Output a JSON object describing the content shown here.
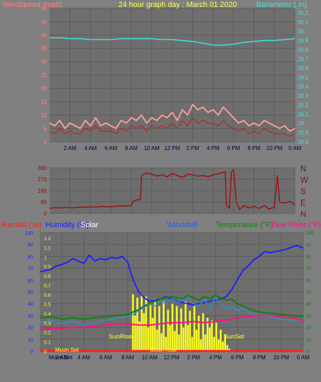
{
  "colors": {
    "background": "#808080",
    "plot_bg": "#6e6e6e",
    "grid": "#5c5c5c",
    "wind_label": "#ff8080",
    "title": "#ffff40",
    "baro": "#40e0e0",
    "dir": "#a01010",
    "dir_label": "#801010",
    "rain": "#ff2020",
    "humidity": "#2020ff",
    "solar": "#ffff20",
    "windchill": "#2060e0",
    "temperature": "#108010",
    "dewpoint": "#ff1080",
    "moon_label": "#ffff40"
  },
  "chart_data": [
    {
      "type": "line",
      "panel": "wind",
      "title": "24 hour graph day : March 01 2020",
      "ylabel_left": "Windspeed (mph)",
      "ylabel_right": "Barometer (.in)",
      "x_ticks": [
        "2 AM",
        "4 AM",
        "6 AM",
        "8 AM",
        "10 AM",
        "12 PM",
        "2 PM",
        "4 PM",
        "6 PM",
        "8 PM",
        "10 PM",
        "0 AM"
      ],
      "y_ticks_left": [
        "50",
        "45",
        "40",
        "35",
        "30",
        "25",
        "20",
        "15",
        "10",
        "5",
        "0"
      ],
      "y_ticks_right": [
        "30.2",
        "30.1",
        "30",
        "29.9",
        "29.8",
        "29.7",
        "29.6",
        "29.5",
        "29.4",
        "29.3",
        "29.2",
        "29.1",
        "29",
        "28.9",
        "28.8"
      ],
      "ylim_left": [
        0,
        50
      ],
      "ylim_right": [
        28.8,
        30.25
      ],
      "xlim_hours": [
        0,
        24
      ],
      "series": [
        {
          "role": "gust",
          "axis": "left",
          "x": [
            0,
            0.5,
            1,
            1.5,
            2,
            2.5,
            3,
            3.5,
            4,
            4.5,
            5,
            5.5,
            6,
            6.5,
            7,
            7.5,
            8,
            8.5,
            9,
            9.5,
            10,
            10.5,
            11,
            11.5,
            12,
            12.5,
            13,
            13.5,
            14,
            14.5,
            15,
            15.5,
            16,
            16.5,
            17,
            17.5,
            18,
            18.5,
            19,
            19.5,
            20,
            20.5,
            21,
            21.5,
            22,
            22.5,
            23,
            23.5,
            24
          ],
          "y": [
            7,
            6,
            8,
            5,
            7,
            6,
            5,
            8,
            6,
            9,
            6,
            7,
            6,
            5,
            8,
            7,
            9,
            8,
            10,
            7,
            9,
            8,
            10,
            9,
            11,
            8,
            12,
            10,
            14,
            12,
            13,
            11,
            12,
            10,
            13,
            11,
            9,
            7,
            8,
            6,
            7,
            6,
            8,
            7,
            6,
            5,
            6,
            4,
            5
          ]
        },
        {
          "role": "speed",
          "axis": "left",
          "x": [
            0,
            0.5,
            1,
            1.5,
            2,
            2.5,
            3,
            3.5,
            4,
            4.5,
            5,
            5.5,
            6,
            6.5,
            7,
            7.5,
            8,
            8.5,
            9,
            9.5,
            10,
            10.5,
            11,
            11.5,
            12,
            12.5,
            13,
            13.5,
            14,
            14.5,
            15,
            15.5,
            16,
            16.5,
            17,
            17.5,
            18,
            18.5,
            19,
            19.5,
            20,
            20.5,
            21,
            21.5,
            22,
            22.5,
            23,
            23.5,
            24
          ],
          "y": [
            4,
            3,
            5,
            3,
            4,
            3,
            3,
            5,
            4,
            6,
            4,
            4,
            4,
            3,
            5,
            4,
            6,
            5,
            6,
            4,
            6,
            5,
            6,
            5,
            7,
            5,
            8,
            6,
            9,
            7,
            8,
            7,
            7,
            6,
            8,
            6,
            5,
            4,
            5,
            3,
            4,
            3,
            5,
            4,
            3,
            3,
            3,
            2,
            3
          ]
        },
        {
          "role": "barometer",
          "axis": "right",
          "x": [
            0,
            1,
            2,
            3,
            4,
            5,
            6,
            7,
            8,
            9,
            10,
            11,
            12,
            13,
            14,
            15,
            16,
            17,
            18,
            19,
            20,
            21,
            22,
            23,
            24
          ],
          "y": [
            29.93,
            29.93,
            29.92,
            29.92,
            29.91,
            29.91,
            29.91,
            29.92,
            29.92,
            29.92,
            29.92,
            29.91,
            29.91,
            29.9,
            29.89,
            29.87,
            29.85,
            29.85,
            29.86,
            29.88,
            29.89,
            29.9,
            29.9,
            29.91,
            29.92
          ]
        }
      ]
    },
    {
      "type": "line",
      "panel": "direction",
      "y_ticks": [
        "360",
        "270",
        "180",
        "90",
        "0"
      ],
      "compass_labels": [
        "N",
        "W",
        "S",
        "E",
        "N"
      ],
      "ylim": [
        0,
        360
      ],
      "xlim_hours": [
        0,
        24
      ],
      "series": [
        {
          "role": "wind-direction",
          "x": [
            0,
            0.5,
            1,
            1.5,
            2,
            2.5,
            3,
            3.5,
            4,
            4.5,
            5,
            5.5,
            6,
            6.5,
            7,
            7.5,
            8,
            8.2,
            8.5,
            8.9,
            9,
            9.5,
            10,
            10.5,
            11,
            11.5,
            12,
            12.5,
            13,
            13.5,
            14,
            14.5,
            15,
            15.5,
            16,
            16.5,
            17,
            17.2,
            17.3,
            17.6,
            17.8,
            18,
            18.3,
            18.6,
            19,
            19.5,
            20,
            20.5,
            21,
            21.5,
            22,
            22.3,
            22.5,
            23,
            23.5,
            24
          ],
          "y": [
            40,
            45,
            42,
            48,
            44,
            46,
            50,
            47,
            52,
            49,
            55,
            51,
            53,
            56,
            60,
            58,
            62,
            100,
            105,
            110,
            300,
            320,
            310,
            295,
            305,
            290,
            315,
            300,
            285,
            310,
            305,
            295,
            300,
            290,
            305,
            315,
            325,
            330,
            60,
            40,
            330,
            345,
            80,
            30,
            60,
            45,
            55,
            40,
            60,
            35,
            50,
            300,
            90,
            80,
            95,
            70
          ]
        }
      ]
    },
    {
      "type": "line",
      "panel": "temperature",
      "ylabel_rain": "Rainfall (.in)",
      "ylabel_humidity": "Humidity (%)",
      "ylabel_solar": "Solar",
      "ylabel_windchill": "Windchill",
      "ylabel_temperature": "Temperature (°F)",
      "ylabel_dewpoint": "Dew Point (°F)",
      "x_ticks": [
        "2 AM",
        "4 AM",
        "6 AM",
        "8 AM",
        "10 AM",
        "12 PM",
        "2 PM",
        "4 PM",
        "6 PM",
        "8 PM",
        "10 PM",
        "0 AM"
      ],
      "x_tick_first": "Moon Set",
      "y_ticks_left": [
        "100",
        "90",
        "80",
        "70",
        "60",
        "50",
        "40",
        "30",
        "20",
        "10",
        "0"
      ],
      "y_ticks_rain": [
        "1.2",
        "1.1",
        "1",
        "0.9",
        "0.8",
        "0.7",
        "0.6",
        "0.5",
        "0.4",
        "0.3",
        "0.2",
        "0.1",
        "0"
      ],
      "y_ticks_right": [
        "100",
        "90",
        "80",
        "70",
        "60",
        "50",
        "40",
        "30",
        "20",
        "10",
        "0"
      ],
      "ylim": [
        0,
        100
      ],
      "xlim_hours": [
        0,
        24
      ],
      "annotations": {
        "moon_set": "Moon Set",
        "sunrise": "SunRise",
        "sunset": "SunSet",
        "moon_rise": "Moon Rise"
      },
      "series": [
        {
          "role": "humidity",
          "x": [
            0,
            0.5,
            1,
            1.5,
            2,
            2.5,
            3,
            3.5,
            4,
            4.5,
            5,
            5.5,
            6,
            6.5,
            7,
            7.5,
            8,
            8.5,
            9,
            9.5,
            10,
            10.5,
            11,
            11.5,
            12,
            12.5,
            13,
            13.5,
            14,
            14.5,
            15,
            15.5,
            16,
            16.5,
            17,
            17.5,
            18,
            18.5,
            19,
            19.5,
            20,
            20.5,
            21,
            21.5,
            22,
            22.5,
            23,
            23.5,
            24
          ],
          "y": [
            67,
            68,
            69,
            72,
            73,
            75,
            78,
            76,
            74,
            81,
            76,
            78,
            77,
            79,
            78,
            80,
            75,
            60,
            50,
            45,
            42,
            43,
            44,
            46,
            44,
            42,
            41,
            40,
            39,
            40,
            41,
            42,
            43,
            44,
            46,
            52,
            60,
            68,
            72,
            77,
            80,
            84,
            83,
            84,
            85,
            86,
            88,
            89,
            87
          ]
        },
        {
          "role": "temperature",
          "x": [
            0,
            1,
            2,
            3,
            4,
            5,
            6,
            7,
            8,
            8.5,
            9,
            9.5,
            10,
            10.5,
            11,
            11.5,
            12,
            12.5,
            13,
            13.5,
            14,
            14.5,
            15,
            15.5,
            16,
            16.5,
            17,
            17.5,
            18,
            18.5,
            19,
            19.5,
            20,
            21,
            22,
            23,
            24
          ],
          "y": [
            28,
            29,
            27,
            28,
            27,
            28,
            29,
            30,
            31,
            33,
            35,
            38,
            40,
            42,
            44,
            45,
            46,
            45,
            44,
            47,
            45,
            43,
            46,
            44,
            47,
            45,
            43,
            44,
            40,
            38,
            36,
            34,
            33,
            32,
            31,
            30,
            29
          ]
        },
        {
          "role": "windchill",
          "x": [
            0,
            1,
            2,
            3,
            4,
            5,
            6,
            7,
            8,
            8.5,
            9,
            9.5,
            10,
            10.5,
            11,
            11.5,
            12,
            12.5,
            13,
            13.5,
            14,
            14.5,
            15,
            15.5,
            16,
            16.5,
            17,
            17.5,
            18,
            18.5,
            19,
            19.5,
            20,
            21,
            22,
            23,
            24
          ],
          "y": [
            24,
            26,
            23,
            25,
            22,
            24,
            26,
            28,
            29,
            31,
            34,
            37,
            39,
            38,
            42,
            40,
            44,
            41,
            43,
            45,
            40,
            38,
            44,
            36,
            45,
            40,
            35,
            38,
            34,
            36,
            33,
            31,
            30,
            29,
            27,
            26,
            27
          ]
        },
        {
          "role": "dewpoint",
          "x": [
            0,
            1,
            2,
            3,
            4,
            5,
            6,
            7,
            8,
            9,
            10,
            11,
            12,
            13,
            14,
            15,
            16,
            17,
            18,
            19,
            20,
            21,
            22,
            23,
            24
          ],
          "y": [
            18,
            19,
            19,
            20,
            20,
            21,
            22,
            23,
            23,
            22,
            22,
            23,
            24,
            24,
            25,
            24,
            25,
            26,
            28,
            29,
            30,
            30,
            29,
            28,
            26
          ]
        },
        {
          "role": "rainfall",
          "x": [
            0,
            24
          ],
          "y": [
            0,
            0
          ]
        },
        {
          "role": "solar",
          "x": [
            8.4,
            8.6,
            8.8,
            9,
            9.2,
            9.4,
            9.6,
            9.8,
            10,
            10.2,
            10.4,
            10.6,
            10.8,
            11,
            11.2,
            11.4,
            11.6,
            11.8,
            12,
            12.2,
            12.4,
            12.6,
            12.8,
            13,
            13.2,
            13.4,
            13.6,
            13.8,
            14,
            14.2,
            14.4,
            14.6,
            14.8,
            15,
            15.2,
            15.4,
            15.6,
            15.8,
            16,
            16.2,
            16.4,
            16.6,
            16.8,
            17,
            17.2
          ],
          "y": [
            48,
            30,
            45,
            25,
            48,
            32,
            46,
            20,
            40,
            28,
            44,
            18,
            38,
            15,
            42,
            12,
            35,
            22,
            40,
            17,
            38,
            14,
            36,
            20,
            42,
            22,
            34,
            12,
            38,
            18,
            30,
            10,
            32,
            14,
            28,
            20,
            26,
            12,
            24,
            10,
            18,
            8,
            14,
            5,
            2
          ]
        }
      ]
    }
  ]
}
